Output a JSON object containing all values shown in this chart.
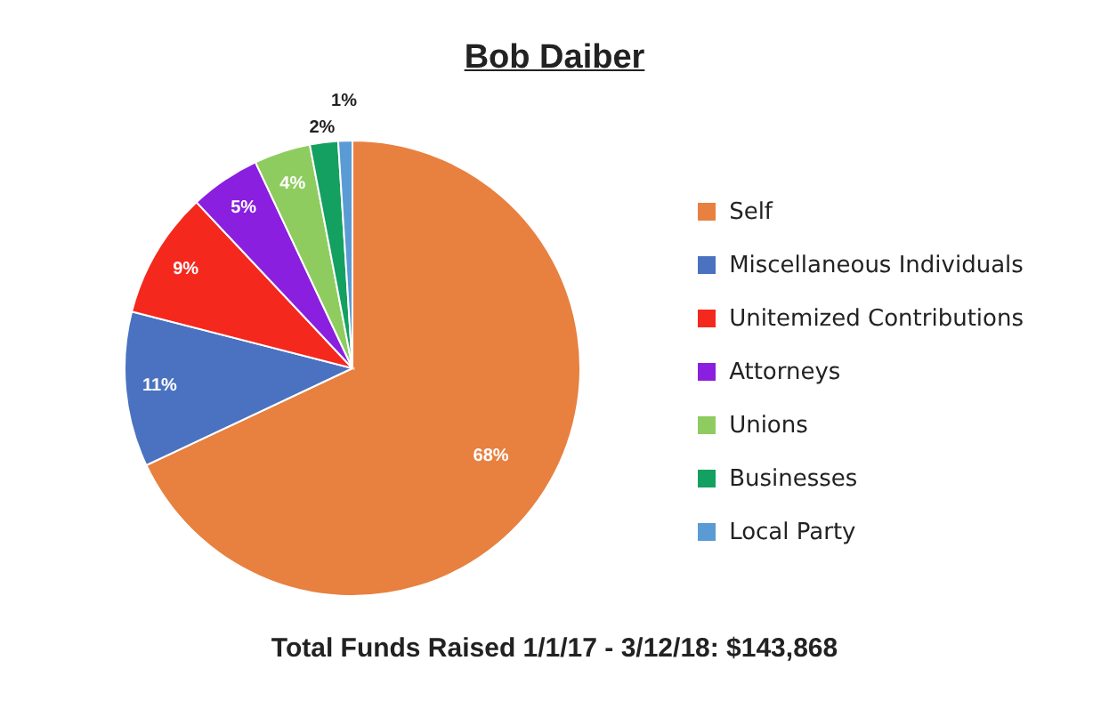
{
  "chart_data": {
    "type": "pie",
    "title": "Bob Daiber",
    "categories": [
      "Self",
      "Miscellaneous Individuals",
      "Unitemized Contributions",
      "Attorneys",
      "Unions",
      "Businesses",
      "Local Party"
    ],
    "values": [
      68,
      11,
      9,
      5,
      4,
      2,
      1
    ],
    "value_labels": [
      "68%",
      "11%",
      "9%",
      "5%",
      "4%",
      "2%",
      "1%"
    ],
    "colors": [
      "#e8803f",
      "#4a72c0",
      "#f5281e",
      "#8a1fe0",
      "#8fcc60",
      "#14a060",
      "#5a9bd5"
    ],
    "legend": "right",
    "annotations": [
      "Total Funds Raised 1/1/17 - 3/12/18: $143,868"
    ]
  }
}
